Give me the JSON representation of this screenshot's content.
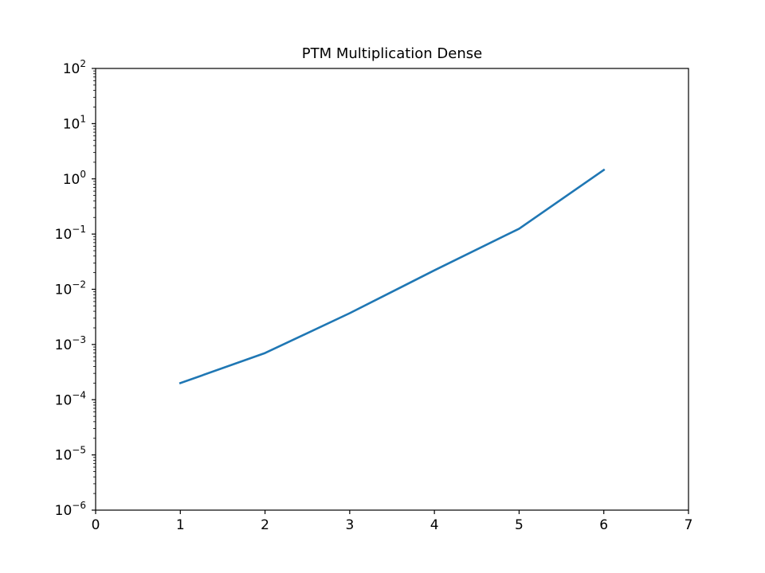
{
  "chart_data": {
    "type": "line",
    "title": "PTM Multiplication Dense",
    "xlabel": "",
    "ylabel": "",
    "xlim": [
      0,
      7
    ],
    "ylim": [
      1e-06,
      100
    ],
    "yscale": "log",
    "grid": false,
    "x_ticks": [
      0,
      1,
      2,
      3,
      4,
      5,
      6,
      7
    ],
    "x_tick_labels": [
      "0",
      "1",
      "2",
      "3",
      "4",
      "5",
      "6",
      "7"
    ],
    "y_ticks": [
      {
        "base": "10",
        "exp": "−6",
        "value": 1e-06
      },
      {
        "base": "10",
        "exp": "−5",
        "value": 1e-05
      },
      {
        "base": "10",
        "exp": "−4",
        "value": 0.0001
      },
      {
        "base": "10",
        "exp": "−3",
        "value": 0.001
      },
      {
        "base": "10",
        "exp": "−2",
        "value": 0.01
      },
      {
        "base": "10",
        "exp": "−1",
        "value": 0.1
      },
      {
        "base": "10",
        "exp": "0",
        "value": 1
      },
      {
        "base": "10",
        "exp": "1",
        "value": 10
      },
      {
        "base": "10",
        "exp": "2",
        "value": 100
      }
    ],
    "series": [
      {
        "color": "#1f77b4",
        "x": [
          1,
          2,
          3,
          4,
          5,
          6
        ],
        "y": [
          0.0002,
          0.0007,
          0.0037,
          0.022,
          0.125,
          1.45
        ]
      }
    ]
  }
}
